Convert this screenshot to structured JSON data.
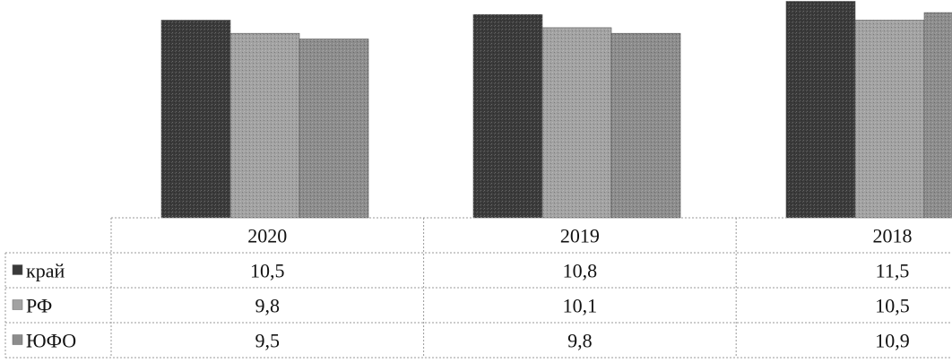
{
  "chart_data": {
    "type": "bar",
    "title": "",
    "xlabel": "",
    "ylabel": "",
    "categories": [
      "2020",
      "2019",
      "2018"
    ],
    "series": [
      {
        "name": "край",
        "values": [
          10.5,
          10.8,
          11.5
        ],
        "display": [
          "10,5",
          "10,8",
          "11,5"
        ],
        "color": "#3a3a3a"
      },
      {
        "name": "РФ",
        "values": [
          9.8,
          10.1,
          10.5
        ],
        "display": [
          "9,8",
          "10,1",
          "10,5"
        ],
        "color": "#a2a2a2"
      },
      {
        "name": "ЮФО",
        "values": [
          9.5,
          9.8,
          10.9
        ],
        "display": [
          "9,5",
          "9,8",
          "10,9"
        ],
        "color": "#8c8c8c"
      }
    ],
    "ylim": [
      0,
      11.6
    ],
    "grid": false,
    "legend": "data-table",
    "data_table": true
  }
}
